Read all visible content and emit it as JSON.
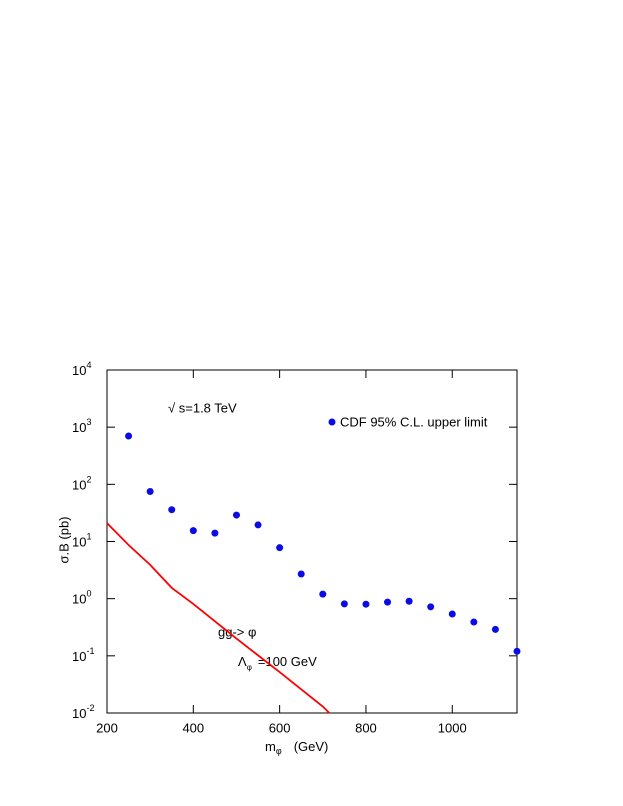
{
  "chart_data": {
    "type": "scatter",
    "xlim": [
      200,
      1150
    ],
    "ylim": [
      0.01,
      10000
    ],
    "log_y": true,
    "xticks": [
      200,
      400,
      600,
      800,
      1000
    ],
    "yticks": [
      {
        "value": 0.01,
        "label": "10",
        "exponent": "-2"
      },
      {
        "value": 0.1,
        "label": "10",
        "exponent": "-1"
      },
      {
        "value": 1,
        "label": "10",
        "exponent": "0"
      },
      {
        "value": 10,
        "label": "10",
        "exponent": "1"
      },
      {
        "value": 100,
        "label": "10",
        "exponent": "2"
      },
      {
        "value": 1000,
        "label": "10",
        "exponent": "3"
      },
      {
        "value": 10000,
        "label": "10",
        "exponent": "4"
      }
    ],
    "x_label": {
      "text": "m",
      "sub": "φ",
      "unit": "(GeV)"
    },
    "y_label": "σ.B  (pb)",
    "annotations": [
      {
        "text": "√ s=1.8 TeV"
      },
      {
        "text": "gg-> φ"
      },
      {
        "text": "Λ",
        "sub": "φ",
        "rest": "=100 GeV"
      }
    ],
    "series": [
      {
        "type": "scatter",
        "name": "CDF 95% C.L. upper limit",
        "color": "#0b0be6",
        "x": [
          250,
          300,
          350,
          400,
          450,
          500,
          550,
          600,
          650,
          700,
          750,
          800,
          850,
          900,
          950,
          1000,
          1050,
          1100,
          1150
        ],
        "values": [
          700,
          75,
          36,
          15.5,
          14,
          29,
          19.5,
          7.8,
          2.7,
          1.2,
          0.81,
          0.8,
          0.87,
          0.9,
          0.72,
          0.54,
          0.39,
          0.29,
          0.12
        ]
      },
      {
        "type": "line",
        "color": "#ff0000",
        "x": [
          200,
          250,
          300,
          350,
          400,
          500,
          600,
          700,
          715
        ],
        "values": [
          21,
          8.7,
          3.9,
          1.55,
          0.81,
          0.2,
          0.052,
          0.013,
          0.01
        ]
      }
    ]
  }
}
